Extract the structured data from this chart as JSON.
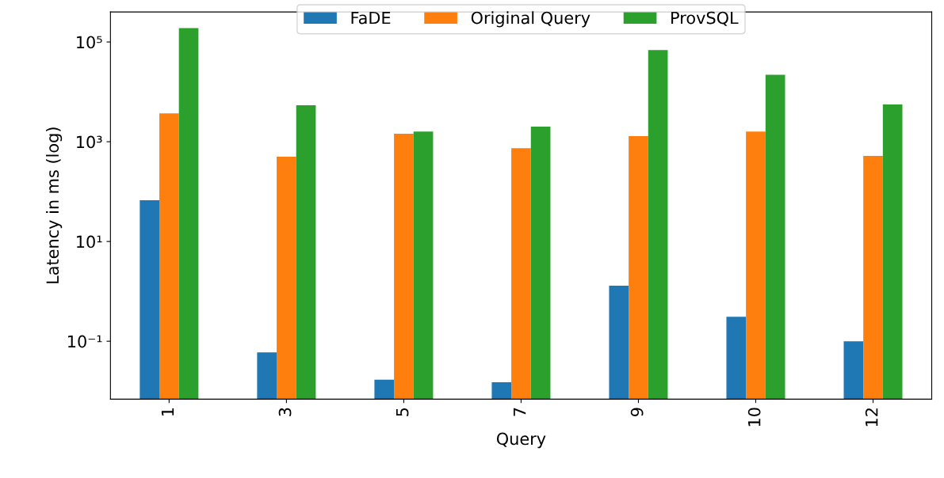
{
  "chart_data": {
    "type": "bar",
    "xlabel": "Query",
    "ylabel": "Latency in ms (log)",
    "categories": [
      "1",
      "3",
      "5",
      "7",
      "9",
      "10",
      "12"
    ],
    "series": [
      {
        "name": "FaDE",
        "color": "#1f77b4",
        "values": [
          67,
          0.06,
          0.017,
          0.015,
          1.3,
          0.31,
          0.1
        ]
      },
      {
        "name": "Original Query",
        "color": "#ff7f0e",
        "values": [
          3700,
          500,
          1450,
          740,
          1300,
          1600,
          520
        ]
      },
      {
        "name": "ProvSQL",
        "color": "#2ca02c",
        "values": [
          190000,
          5400,
          1600,
          2000,
          69000,
          22000,
          5600
        ]
      }
    ],
    "log": "y",
    "ylim": [
      0.0069,
      400000
    ],
    "yticks": [
      {
        "value": 0.1,
        "label": "10⁻¹"
      },
      {
        "value": 10,
        "label": "10¹"
      },
      {
        "value": 1000,
        "label": "10³"
      },
      {
        "value": 100000,
        "label": "10⁵"
      }
    ],
    "legend": "top",
    "grid": false
  }
}
